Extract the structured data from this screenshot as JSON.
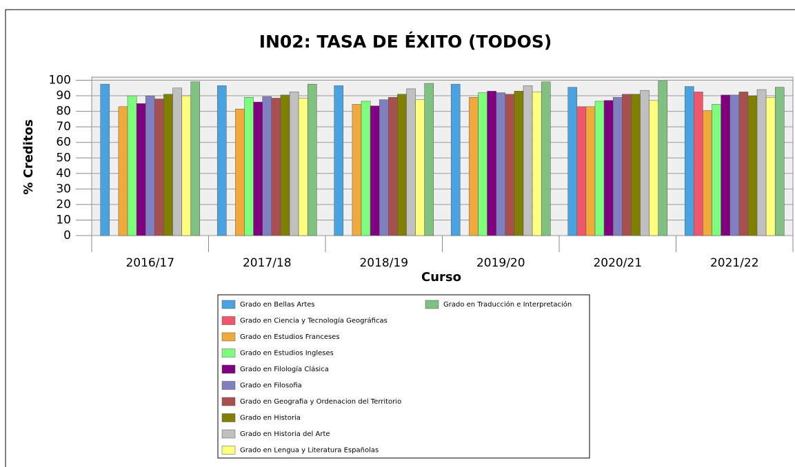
{
  "chart_data": {
    "type": "bar",
    "title": "IN02: TASA DE ÉXITO (TODOS)",
    "xlabel": "Curso",
    "ylabel": "% Creditos",
    "categories": [
      "2016/17",
      "2017/18",
      "2018/19",
      "2019/20",
      "2020/21",
      "2021/22"
    ],
    "series": [
      {
        "name": "Grado en Bellas Artes",
        "color": "#4aa3df",
        "values": [
          97.5,
          96.5,
          96.5,
          97.5,
          95.5,
          96
        ]
      },
      {
        "name": "Grado en Ciencia y Tecnología Geográficas",
        "color": "#f0576a",
        "values": [
          null,
          null,
          null,
          null,
          83,
          92.5
        ]
      },
      {
        "name": "Grado en Estudios Franceses",
        "color": "#f0aa3c",
        "values": [
          83,
          81.5,
          84.5,
          89,
          83,
          80.5
        ]
      },
      {
        "name": "Grado en Estudios Ingleses",
        "color": "#7dff7d",
        "values": [
          90,
          89,
          86.5,
          92,
          86.5,
          84.5
        ]
      },
      {
        "name": "Grado en Filología Clásica",
        "color": "#800080",
        "values": [
          85,
          86,
          83.5,
          93,
          87,
          90.5
        ]
      },
      {
        "name": "Grado en Filosofia",
        "color": "#8080c0",
        "values": [
          90,
          89.5,
          87.5,
          92,
          89,
          90.5
        ]
      },
      {
        "name": "Grado en Geografia y Ordenacion del Territorio",
        "color": "#a85050",
        "values": [
          88,
          88.5,
          89,
          91,
          91,
          92.5
        ]
      },
      {
        "name": "Grado en Historia",
        "color": "#808000",
        "values": [
          91,
          90.5,
          91,
          93,
          91,
          90
        ]
      },
      {
        "name": "Grado en Historia del Arte",
        "color": "#c0c0c0",
        "values": [
          95,
          92.5,
          94.5,
          96.5,
          93.5,
          94
        ]
      },
      {
        "name": "Grado en Lengua y Literatura Españolas",
        "color": "#ffff80",
        "values": [
          90,
          88.5,
          87.5,
          92.5,
          87,
          89
        ]
      },
      {
        "name": "Grado en Traducción e Interpretación",
        "color": "#80c080",
        "values": [
          99,
          97.5,
          98,
          99,
          99.5,
          95.5
        ]
      }
    ],
    "ylim": [
      0,
      102
    ],
    "yticks": [
      0,
      10,
      20,
      30,
      40,
      50,
      60,
      70,
      80,
      90,
      100
    ],
    "grid": true
  }
}
